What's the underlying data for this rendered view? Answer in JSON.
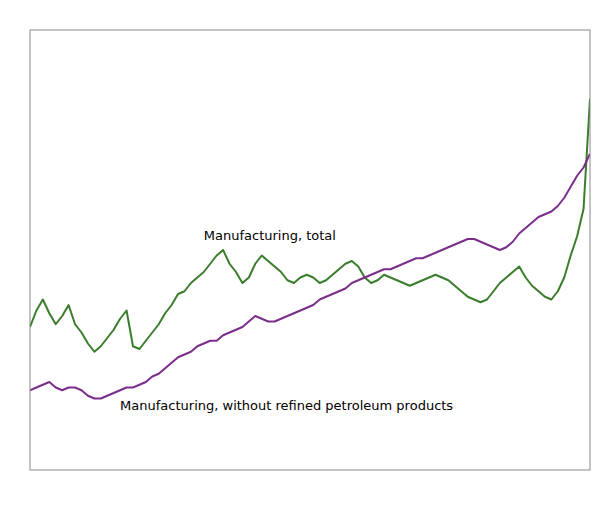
{
  "chart_data": {
    "type": "line",
    "xlim": [
      0,
      87
    ],
    "ylim": [
      50,
      210
    ],
    "grid": false,
    "tick_labels": false,
    "series": [
      {
        "name": "Manufacturing,  total",
        "color": "#3a7d2c",
        "values": [
          102,
          108,
          112,
          107,
          103,
          106,
          110,
          103,
          100,
          96,
          93,
          95,
          98,
          101,
          105,
          108,
          95,
          94,
          97,
          100,
          103,
          107,
          110,
          114,
          115,
          118,
          120,
          122,
          125,
          128,
          130,
          125,
          122,
          118,
          120,
          125,
          128,
          126,
          124,
          122,
          119,
          118,
          120,
          121,
          120,
          118,
          119,
          121,
          123,
          125,
          126,
          124,
          120,
          118,
          119,
          121,
          120,
          119,
          118,
          117,
          118,
          119,
          120,
          121,
          120,
          119,
          117,
          115,
          113,
          112,
          111,
          112,
          115,
          118,
          120,
          122,
          124,
          120,
          117,
          115,
          113,
          112,
          115,
          120,
          128,
          135,
          145,
          185
        ]
      },
      {
        "name": "Manufacturing,  without refined  petroleum  products",
        "color": "#7b2d8b",
        "values": [
          79,
          80,
          81,
          82,
          80,
          79,
          80,
          80,
          79,
          77,
          76,
          76,
          77,
          78,
          79,
          80,
          80,
          81,
          82,
          84,
          85,
          87,
          89,
          91,
          92,
          93,
          95,
          96,
          97,
          97,
          99,
          100,
          101,
          102,
          104,
          106,
          105,
          104,
          104,
          105,
          106,
          107,
          108,
          109,
          110,
          112,
          113,
          114,
          115,
          116,
          118,
          119,
          120,
          121,
          122,
          123,
          123,
          124,
          125,
          126,
          127,
          127,
          128,
          129,
          130,
          131,
          132,
          133,
          134,
          134,
          133,
          132,
          131,
          130,
          131,
          133,
          136,
          138,
          140,
          142,
          143,
          144,
          146,
          149,
          153,
          157,
          160,
          165
        ]
      }
    ]
  }
}
